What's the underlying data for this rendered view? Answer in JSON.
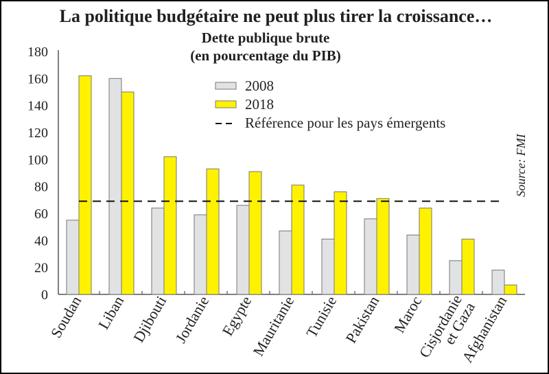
{
  "chart_data": {
    "type": "bar",
    "title": "La politique budgétaire ne peut plus tirer la croissance…",
    "subtitle": [
      "Dette publique brute",
      "(en pourcentage du PIB)"
    ],
    "source": "Source: FMI",
    "categories": [
      [
        "Soudan"
      ],
      [
        "Liban"
      ],
      [
        "Djibouti"
      ],
      [
        "Jordanie"
      ],
      [
        "Egypte"
      ],
      [
        "Mauritanie"
      ],
      [
        "Tunisie"
      ],
      [
        "Pakistan"
      ],
      [
        "Maroc"
      ],
      [
        "Cisjordanie",
        "et Gaza"
      ],
      [
        "Afghanistan"
      ]
    ],
    "series": [
      {
        "name": "2008",
        "color": "#e1e2e4",
        "values": [
          55,
          160,
          64,
          59,
          66,
          47,
          41,
          56,
          44,
          25,
          18
        ]
      },
      {
        "name": "2018",
        "color": "#fff200",
        "values": [
          162,
          150,
          102,
          93,
          91,
          81,
          76,
          71,
          64,
          41,
          7
        ]
      }
    ],
    "reference": {
      "name": "Référence pour les pays émergents",
      "value": 69
    },
    "ylim": [
      0,
      180
    ],
    "yticks": [
      0,
      20,
      40,
      60,
      80,
      100,
      120,
      140,
      160,
      180
    ],
    "grid": false,
    "legend_placement": "top-center"
  }
}
